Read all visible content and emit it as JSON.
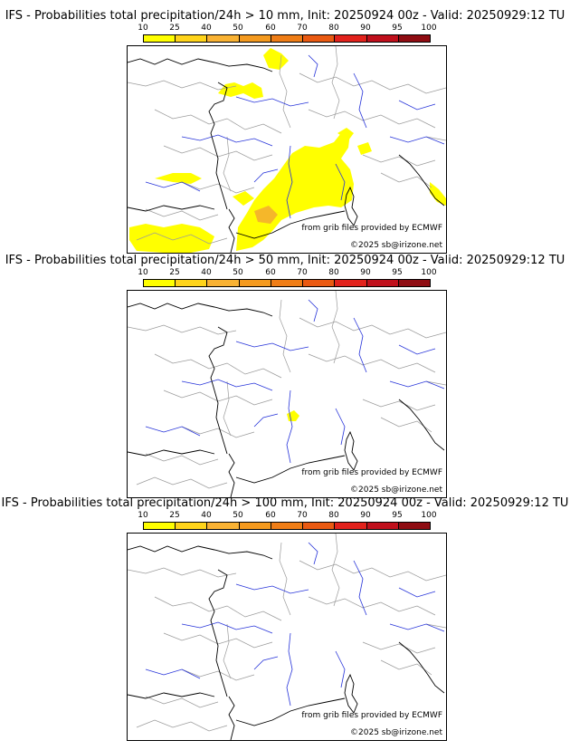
{
  "colorbar": {
    "ticks": [
      "10",
      "25",
      "40",
      "50",
      "60",
      "70",
      "80",
      "90",
      "95",
      "100"
    ],
    "colors": [
      "#ffff00",
      "#ffd41a",
      "#f9b233",
      "#f49a1f",
      "#ef7d16",
      "#ea5a12",
      "#e2221c",
      "#c0101c",
      "#8f0c12",
      "#5a0a0a"
    ]
  },
  "map_colors": {
    "coast": "#000000",
    "rivers": "#2633d9",
    "borders": "#9a9a9a",
    "prob_low": "#ffff00",
    "prob_mid": "#f5b72a"
  },
  "panels": [
    {
      "title": "IFS - Probabilities total precipitation/24h > 10 mm, Init: 20250924 00z - Valid: 20250929:12 TU",
      "source_credit": "from grib files provided by ECMWF",
      "copyright": "©2025 sb@irizone.net",
      "precip_areas": [
        "central-east France",
        "Channel / southern England",
        "western France coast",
        "north-east Spain",
        "Alps"
      ]
    },
    {
      "title": "IFS - Probabilities total precipitation/24h > 50 mm, Init: 20250924 00z - Valid: 20250929:12 TU",
      "source_credit": "from grib files provided by ECMWF",
      "copyright": "©2025 sb@irizone.net",
      "precip_areas": [
        "Gulf of Lion coast"
      ]
    },
    {
      "title": "IFS - Probabilities total precipitation/24h > 100 mm, Init: 20250924 00z - Valid: 20250929:12 TU",
      "source_credit": "from grib files provided by ECMWF",
      "copyright": "©2025 sb@irizone.net",
      "precip_areas": []
    }
  ]
}
